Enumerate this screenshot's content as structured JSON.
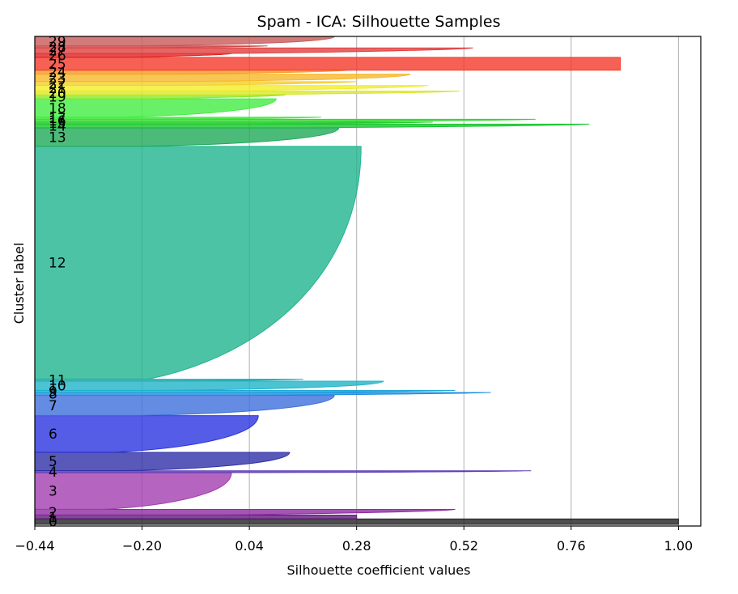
{
  "chart_data": {
    "type": "area",
    "title": "Spam - ICA: Silhouette Samples",
    "xlabel": "Silhouette coefficient values",
    "ylabel": "Cluster label",
    "xlim": [
      -0.44,
      1.05
    ],
    "xticks": [
      "−0.44",
      "−0.20",
      "0.04",
      "0.28",
      "0.52",
      "0.76",
      "1.00"
    ],
    "xtick_values": [
      -0.44,
      -0.2,
      0.04,
      0.28,
      0.52,
      0.76,
      1.0
    ],
    "grid": "vertical",
    "legend": "none",
    "clusters": [
      {
        "label": "0",
        "size": 6,
        "max": 1.0,
        "profile": "flat",
        "color": "#222222"
      },
      {
        "label": "1",
        "size": 4,
        "max": 0.28,
        "profile": "flat",
        "color": "#5e1a7a"
      },
      {
        "label": "2",
        "size": 6,
        "max": 0.5,
        "profile": "spike",
        "color": "#8e2ba0"
      },
      {
        "label": "3",
        "size": 40,
        "max": 0.0,
        "profile": "convex",
        "color": "#a23fb0"
      },
      {
        "label": "4",
        "size": 2,
        "max": 0.67,
        "profile": "spike",
        "color": "#5a3bb5"
      },
      {
        "label": "5",
        "size": 20,
        "max": 0.13,
        "profile": "convex",
        "color": "#2f2fa8"
      },
      {
        "label": "6",
        "size": 40,
        "max": 0.06,
        "profile": "convex",
        "color": "#2a35e0"
      },
      {
        "label": "7",
        "size": 22,
        "max": 0.23,
        "profile": "convex",
        "color": "#3f6fdc"
      },
      {
        "label": "8",
        "size": 3,
        "max": 0.58,
        "profile": "spike",
        "color": "#1f8fe0"
      },
      {
        "label": "9",
        "size": 2,
        "max": 0.5,
        "profile": "spike",
        "color": "#20a8d8"
      },
      {
        "label": "10",
        "size": 10,
        "max": 0.34,
        "profile": "convex",
        "color": "#1fb4c8"
      },
      {
        "label": "11",
        "size": 2,
        "max": 0.16,
        "profile": "spike",
        "color": "#1faab0"
      },
      {
        "label": "12",
        "size": 255,
        "max": 0.29,
        "profile": "convex",
        "color": "#20b490"
      },
      {
        "label": "13",
        "size": 20,
        "max": 0.24,
        "profile": "convex",
        "color": "#1faa58"
      },
      {
        "label": "14",
        "size": 4,
        "max": 0.8,
        "profile": "spike",
        "color": "#16c42e"
      },
      {
        "label": "15",
        "size": 2,
        "max": 0.45,
        "profile": "spike",
        "color": "#22cc2a"
      },
      {
        "label": "16",
        "size": 3,
        "max": 0.68,
        "profile": "spike",
        "color": "#2ed82c"
      },
      {
        "label": "17",
        "size": 2,
        "max": 0.2,
        "profile": "spike",
        "color": "#3fe83a"
      },
      {
        "label": "18",
        "size": 20,
        "max": 0.1,
        "profile": "convex",
        "color": "#42ee42"
      },
      {
        "label": "19",
        "size": 4,
        "max": 0.12,
        "profile": "spike",
        "color": "#90e82a"
      },
      {
        "label": "20",
        "size": 4,
        "max": 0.51,
        "profile": "spike",
        "color": "#d8e82a"
      },
      {
        "label": "21",
        "size": 6,
        "max": 0.44,
        "profile": "spike",
        "color": "#f2ee2a"
      },
      {
        "label": "22",
        "size": 4,
        "max": 0.28,
        "profile": "spike",
        "color": "#f5d02a"
      },
      {
        "label": "23",
        "size": 8,
        "max": 0.4,
        "profile": "convex",
        "color": "#f6b82a"
      },
      {
        "label": "24",
        "size": 4,
        "max": 0.26,
        "profile": "spike",
        "color": "#f69a2a"
      },
      {
        "label": "25",
        "size": 14,
        "max": 0.87,
        "profile": "flat",
        "color": "#f53a2a"
      },
      {
        "label": "26",
        "size": 4,
        "max": 0.0,
        "profile": "spike",
        "color": "#e02020"
      },
      {
        "label": "27",
        "size": 6,
        "max": 0.54,
        "profile": "spike",
        "color": "#e04040"
      },
      {
        "label": "28",
        "size": 2,
        "max": 0.08,
        "profile": "spike",
        "color": "#d04848"
      },
      {
        "label": "29",
        "size": 10,
        "max": 0.23,
        "profile": "convex",
        "color": "#c85a5a"
      }
    ]
  }
}
